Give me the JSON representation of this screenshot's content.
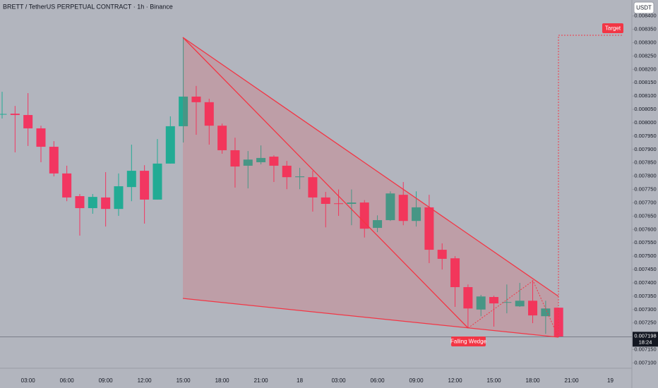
{
  "chart_data": {
    "type": "candlestick",
    "title": "BRETT / TetherUS PERPETUAL CONTRACT · 1h · Binance",
    "currency_button": "USDT",
    "categories": [
      null,
      null,
      "03:00",
      null,
      null,
      "06:00",
      null,
      null,
      "09:00",
      null,
      null,
      "12:00",
      null,
      null,
      "15:00",
      null,
      null,
      "18:00",
      null,
      null,
      "21:00",
      null,
      null,
      "18",
      null,
      null,
      "03:00",
      null,
      null,
      "06:00",
      null,
      null,
      "09:00",
      null,
      null,
      "12:00",
      null,
      null,
      "15:00",
      null,
      null,
      "18:00",
      null,
      null,
      "21:00",
      null,
      null,
      "19"
    ],
    "open": [
      0.008032,
      0.008034,
      0.008029,
      0.007979,
      0.00791,
      0.00781,
      0.007725,
      0.00768,
      0.00772,
      0.007677,
      0.007759,
      0.00782,
      0.007712,
      0.007847,
      0.007987,
      0.008098,
      0.008077,
      0.007989,
      0.007897,
      0.007839,
      0.007852,
      0.007873,
      0.007839,
      0.007796,
      0.007796,
      0.00772,
      0.007698,
      0.007696,
      0.007701,
      0.007606,
      0.007635,
      0.00773,
      0.007632,
      0.007683,
      0.007524,
      0.007492,
      0.007384,
      0.0073,
      0.007347,
      0.007328,
      0.007312,
      0.007333,
      0.007275,
      0.007307,
      null,
      null,
      null,
      null
    ],
    "high": [
      0.008116,
      0.008063,
      0.008111,
      0.007989,
      0.007931,
      0.007839,
      0.007733,
      0.007733,
      0.007815,
      0.00781,
      0.007918,
      0.007841,
      0.007939,
      0.008024,
      0.00832,
      0.008138,
      0.00809,
      0.007997,
      0.007944,
      0.007894,
      0.007915,
      0.007878,
      0.007857,
      0.007831,
      0.00782,
      0.007741,
      0.00775,
      0.00775,
      0.00771,
      0.007653,
      0.007743,
      0.007778,
      0.007743,
      0.00773,
      0.007548,
      0.0075,
      0.007394,
      0.007355,
      0.007352,
      0.007394,
      0.0074,
      0.00741,
      0.007333,
      0.007307,
      null,
      null,
      null,
      null
    ],
    "low": [
      0.008016,
      0.007889,
      0.007913,
      0.007852,
      0.007799,
      0.007706,
      0.007577,
      0.007659,
      0.007611,
      0.007651,
      0.007706,
      0.007622,
      0.007712,
      0.007847,
      0.007926,
      0.007955,
      0.007918,
      0.007884,
      0.007757,
      0.007754,
      0.007844,
      0.007778,
      0.007751,
      0.007751,
      0.007667,
      0.007608,
      0.007651,
      0.007616,
      0.00757,
      0.00759,
      0.007632,
      0.007616,
      0.007611,
      0.007474,
      0.00745,
      0.00731,
      0.007233,
      0.007275,
      0.007236,
      0.007286,
      0.00731,
      0.007249,
      0.007209,
      0.007196,
      null,
      null,
      null,
      null
    ],
    "close": [
      0.008033,
      0.008029,
      0.007979,
      0.00791,
      0.00781,
      0.00772,
      0.00768,
      0.007722,
      0.007677,
      0.007762,
      0.00782,
      0.007712,
      0.007847,
      0.007987,
      0.008098,
      0.008077,
      0.007989,
      0.007897,
      0.007836,
      0.007862,
      0.007868,
      0.007839,
      0.007796,
      0.007799,
      0.00772,
      0.007696,
      0.007696,
      0.007701,
      0.007603,
      0.007635,
      0.007735,
      0.007632,
      0.007683,
      0.007524,
      0.00749,
      0.007384,
      0.007304,
      0.007349,
      0.007323,
      0.007328,
      0.007333,
      0.007278,
      0.007304,
      0.007198,
      null,
      null,
      null,
      null
    ],
    "up_color": "#22ab94",
    "down_color": "#f23661",
    "ylim": [
      0.00708,
      0.00846
    ],
    "yticks": [
      {
        "value": 0.0071,
        "label": "0.007100"
      },
      {
        "value": 0.00715,
        "label": "0.007150"
      },
      {
        "value": 0.00725,
        "label": "0.007250"
      },
      {
        "value": 0.0073,
        "label": "0.007300"
      },
      {
        "value": 0.00735,
        "label": "0.007350"
      },
      {
        "value": 0.0074,
        "label": "0.007400"
      },
      {
        "value": 0.00745,
        "label": "0.007450"
      },
      {
        "value": 0.0075,
        "label": "0.007500"
      },
      {
        "value": 0.00755,
        "label": "0.007550"
      },
      {
        "value": 0.0076,
        "label": "0.007600"
      },
      {
        "value": 0.00765,
        "label": "0.007650"
      },
      {
        "value": 0.0077,
        "label": "0.007700"
      },
      {
        "value": 0.00775,
        "label": "0.007750"
      },
      {
        "value": 0.0078,
        "label": "0.007800"
      },
      {
        "value": 0.00785,
        "label": "0.007850"
      },
      {
        "value": 0.0079,
        "label": "0.007900"
      },
      {
        "value": 0.00795,
        "label": "0.007950"
      },
      {
        "value": 0.008,
        "label": "0.008000"
      },
      {
        "value": 0.00805,
        "label": "0.008050"
      },
      {
        "value": 0.0081,
        "label": "0.008100"
      },
      {
        "value": 0.00815,
        "label": "0.008150"
      },
      {
        "value": 0.0082,
        "label": "0.008200"
      },
      {
        "value": 0.00825,
        "label": "0.008250"
      },
      {
        "value": 0.0083,
        "label": "0.008300"
      },
      {
        "value": 0.00835,
        "label": "0.008350"
      },
      {
        "value": 0.0084,
        "label": "0.008400"
      }
    ],
    "grid": false,
    "last_price": 0.007198,
    "countdown": "18:24",
    "annotations": [
      "Target",
      "Falling Wedge"
    ]
  }
}
